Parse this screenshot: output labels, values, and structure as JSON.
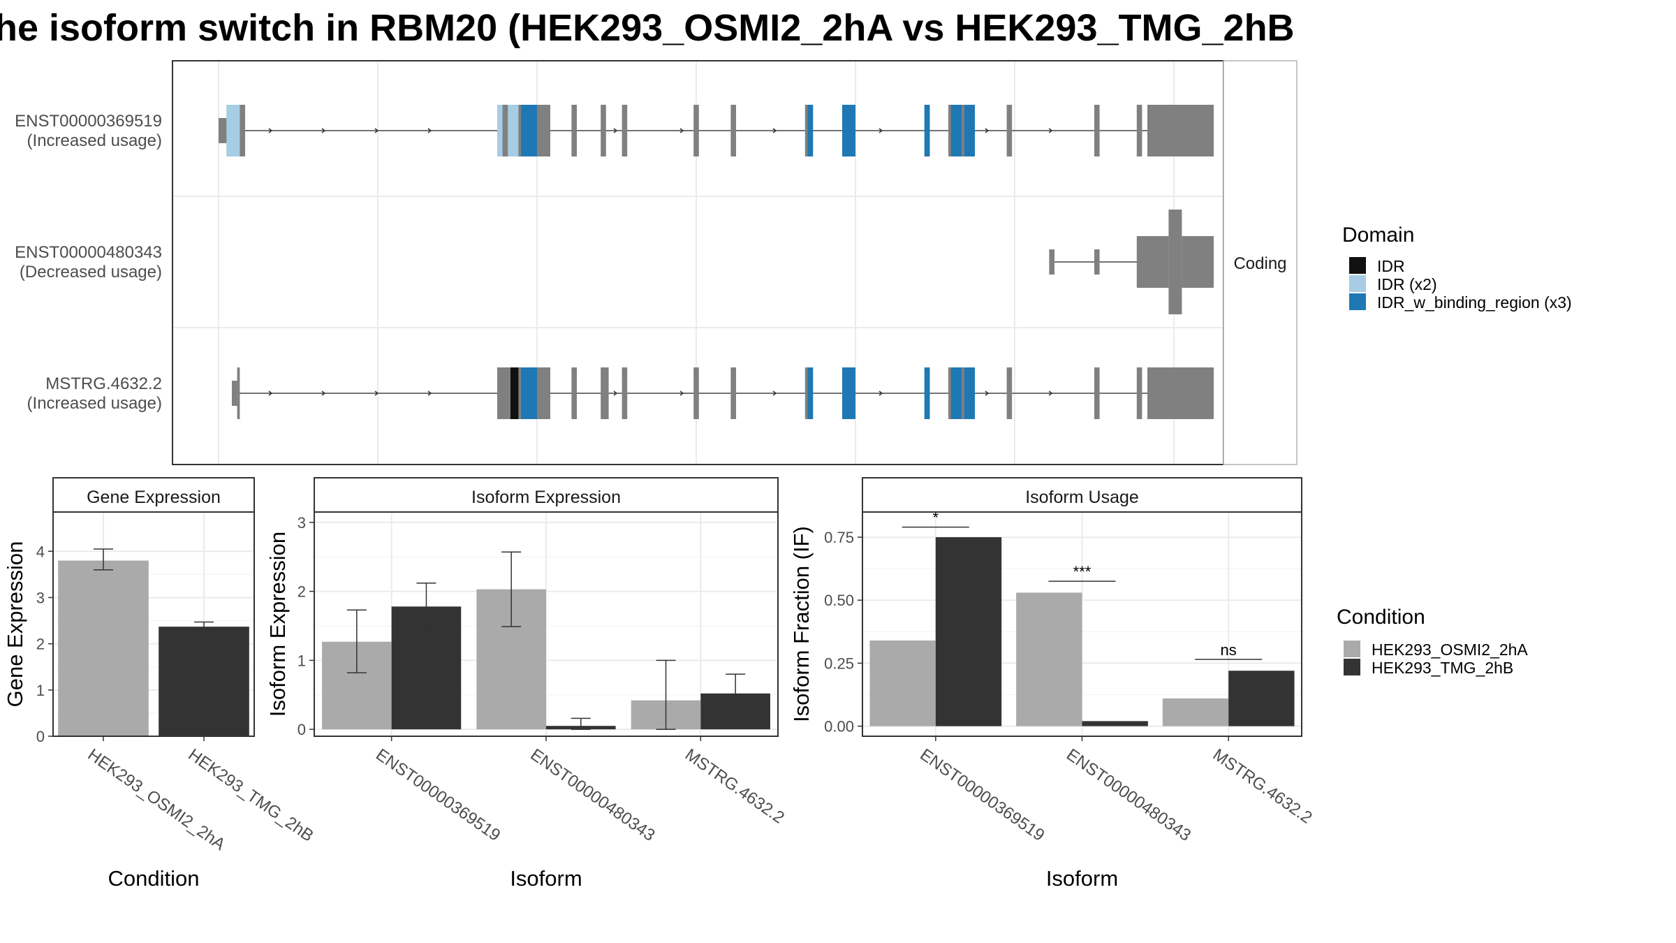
{
  "title": "he isoform switch in RBM20 (HEK293_OSMI2_2hA vs HEK293_TMG_2hB",
  "colors": {
    "exon": "#808080",
    "idr": "#111111",
    "idr_x2": "#a6cde3",
    "idr_binding": "#1f78b4",
    "cond_a": "#aaaaaa",
    "cond_b": "#333333",
    "grid": "#ebebeb",
    "strip": "#ffffff"
  },
  "structure": {
    "facet_label": "Coding",
    "transcripts": [
      {
        "id": "ENST00000369519",
        "status": "(Increased usage)",
        "exons": [
          {
            "start": 0,
            "end": 3,
            "type": "utr"
          },
          {
            "start": 3,
            "end": 10,
            "type": "cds"
          },
          {
            "start": 105,
            "end": 125,
            "type": "cds"
          },
          {
            "start": 133,
            "end": 135,
            "type": "cds"
          },
          {
            "start": 144,
            "end": 146,
            "type": "cds"
          },
          {
            "start": 152,
            "end": 154,
            "type": "cds"
          },
          {
            "start": 179,
            "end": 181,
            "type": "cds"
          },
          {
            "start": 193,
            "end": 195,
            "type": "cds"
          },
          {
            "start": 221,
            "end": 224,
            "type": "cds"
          },
          {
            "start": 235,
            "end": 240,
            "type": "cds"
          },
          {
            "start": 266,
            "end": 268,
            "type": "cds"
          },
          {
            "start": 275,
            "end": 285,
            "type": "cds"
          },
          {
            "start": 297,
            "end": 299,
            "type": "cds"
          },
          {
            "start": 330,
            "end": 332,
            "type": "cds"
          },
          {
            "start": 346,
            "end": 348,
            "type": "cds"
          },
          {
            "start": 350,
            "end": 375,
            "type": "cds"
          }
        ],
        "domains": [
          {
            "start": 3,
            "end": 8,
            "type": "idr_x2"
          },
          {
            "start": 105,
            "end": 107,
            "type": "idr_x2"
          },
          {
            "start": 109,
            "end": 113,
            "type": "idr_x2"
          },
          {
            "start": 114,
            "end": 120,
            "type": "idr_binding"
          },
          {
            "start": 222,
            "end": 224,
            "type": "idr_binding"
          },
          {
            "start": 235,
            "end": 240,
            "type": "idr_binding"
          },
          {
            "start": 266,
            "end": 268,
            "type": "idr_binding"
          },
          {
            "start": 276,
            "end": 280,
            "type": "idr_binding"
          },
          {
            "start": 281,
            "end": 285,
            "type": "idr_binding"
          }
        ]
      },
      {
        "id": "ENST00000480343",
        "status": "(Decreased usage)",
        "exons": [
          {
            "start": 313,
            "end": 315,
            "type": "utr"
          },
          {
            "start": 330,
            "end": 332,
            "type": "utr"
          },
          {
            "start": 346,
            "end": 358,
            "type": "cds"
          },
          {
            "start": 358,
            "end": 363,
            "type": "tall"
          },
          {
            "start": 363,
            "end": 375,
            "type": "cds"
          }
        ],
        "domains": []
      },
      {
        "id": "MSTRG.4632.2",
        "status": "(Increased usage)",
        "exons": [
          {
            "start": 5,
            "end": 7,
            "type": "utr"
          },
          {
            "start": 7,
            "end": 8,
            "type": "cds"
          },
          {
            "start": 105,
            "end": 125,
            "type": "cds"
          },
          {
            "start": 133,
            "end": 135,
            "type": "cds"
          },
          {
            "start": 144,
            "end": 147,
            "type": "cds"
          },
          {
            "start": 152,
            "end": 154,
            "type": "cds"
          },
          {
            "start": 179,
            "end": 181,
            "type": "cds"
          },
          {
            "start": 193,
            "end": 195,
            "type": "cds"
          },
          {
            "start": 221,
            "end": 224,
            "type": "cds"
          },
          {
            "start": 235,
            "end": 240,
            "type": "cds"
          },
          {
            "start": 266,
            "end": 268,
            "type": "cds"
          },
          {
            "start": 275,
            "end": 285,
            "type": "cds"
          },
          {
            "start": 297,
            "end": 299,
            "type": "cds"
          },
          {
            "start": 330,
            "end": 332,
            "type": "cds"
          },
          {
            "start": 346,
            "end": 348,
            "type": "cds"
          },
          {
            "start": 350,
            "end": 375,
            "type": "cds"
          }
        ],
        "domains": [
          {
            "start": 110,
            "end": 113,
            "type": "idr"
          },
          {
            "start": 114,
            "end": 120,
            "type": "idr_binding"
          },
          {
            "start": 222,
            "end": 224,
            "type": "idr_binding"
          },
          {
            "start": 235,
            "end": 240,
            "type": "idr_binding"
          },
          {
            "start": 266,
            "end": 268,
            "type": "idr_binding"
          },
          {
            "start": 276,
            "end": 280,
            "type": "idr_binding"
          },
          {
            "start": 281,
            "end": 285,
            "type": "idr_binding"
          }
        ]
      }
    ]
  },
  "domain_legend": {
    "title": "Domain",
    "items": [
      {
        "label": "IDR",
        "key": "idr"
      },
      {
        "label": "IDR (x2)",
        "key": "idr_x2"
      },
      {
        "label": "IDR_w_binding_region (x3)",
        "key": "idr_binding"
      }
    ]
  },
  "condition_legend": {
    "title": "Condition",
    "items": [
      {
        "label": "HEK293_OSMI2_2hA",
        "key": "cond_a"
      },
      {
        "label": "HEK293_TMG_2hB",
        "key": "cond_b"
      }
    ]
  },
  "chart_data": [
    {
      "type": "bar",
      "title": "Gene Expression",
      "xlabel": "Condition",
      "ylabel": "Gene Expression",
      "ylim": [
        0,
        4.85
      ],
      "yticks": [
        0,
        1,
        2,
        3,
        4
      ],
      "categories": [
        "HEK293_OSMI2_2hA",
        "HEK293_TMG_2hB"
      ],
      "bars": [
        {
          "category": "HEK293_OSMI2_2hA",
          "value": 3.8,
          "err_low": 3.6,
          "err_high": 4.05,
          "fill": "cond_a"
        },
        {
          "category": "HEK293_TMG_2hB",
          "value": 2.37,
          "err_low": 2.28,
          "err_high": 2.47,
          "fill": "cond_b"
        }
      ]
    },
    {
      "type": "bar",
      "title": "Isoform Expression",
      "xlabel": "Isoform",
      "ylabel": "Isoform Expression",
      "ylim": [
        -0.1,
        3.15
      ],
      "yticks": [
        0,
        1,
        2,
        3
      ],
      "categories": [
        "ENST00000369519",
        "ENST00000480343",
        "MSTRG.4632.2"
      ],
      "series": [
        {
          "name": "HEK293_OSMI2_2hA",
          "fill": "cond_a",
          "values": [
            1.27,
            2.03,
            0.42
          ],
          "err_low": [
            0.82,
            1.49,
            0.0
          ],
          "err_high": [
            1.73,
            2.57,
            1.0
          ]
        },
        {
          "name": "HEK293_TMG_2hB",
          "fill": "cond_b",
          "values": [
            1.78,
            0.05,
            0.52
          ],
          "err_low": [
            1.44,
            0.0,
            0.24
          ],
          "err_high": [
            2.12,
            0.16,
            0.8
          ]
        }
      ]
    },
    {
      "type": "bar",
      "title": "Isoform Usage",
      "xlabel": "Isoform",
      "ylabel": "Isoform Fraction (IF)",
      "ylim": [
        -0.04,
        0.85
      ],
      "yticks": [
        0,
        0.25,
        0.5,
        0.75
      ],
      "ytick_labels": [
        "0.00",
        "0.25",
        "0.50",
        "0.75"
      ],
      "categories": [
        "ENST00000369519",
        "ENST00000480343",
        "MSTRG.4632.2"
      ],
      "series": [
        {
          "name": "HEK293_OSMI2_2hA",
          "fill": "cond_a",
          "values": [
            0.34,
            0.53,
            0.11
          ]
        },
        {
          "name": "HEK293_TMG_2hB",
          "fill": "cond_b",
          "values": [
            0.75,
            0.02,
            0.22
          ]
        }
      ],
      "significance": [
        {
          "category": "ENST00000369519",
          "label": "*",
          "y": 0.79
        },
        {
          "category": "ENST00000480343",
          "label": "***",
          "y": 0.575
        },
        {
          "category": "MSTRG.4632.2",
          "label": "ns",
          "y": 0.265
        }
      ]
    }
  ]
}
